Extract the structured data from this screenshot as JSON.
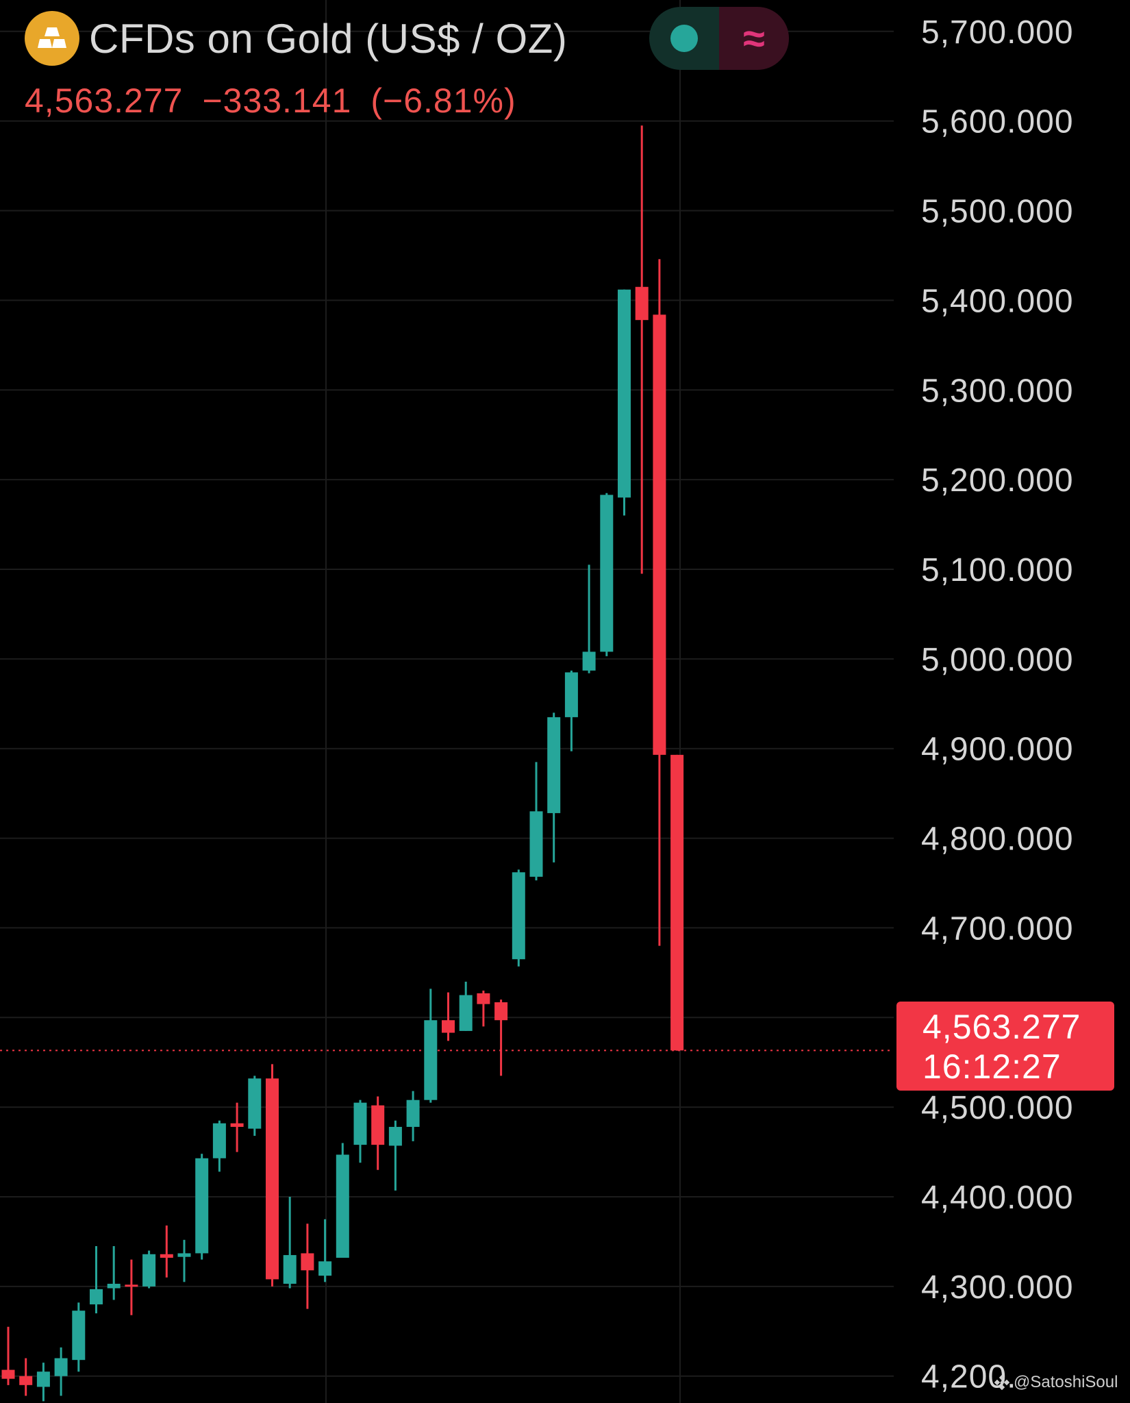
{
  "header": {
    "title": "CFDs on Gold (US$ / OZ)",
    "last_price": "4,563.277",
    "change": "−333.141",
    "change_pct": "(−6.81%)",
    "indicator_symbol": "≈"
  },
  "price_tag": {
    "price": "4,563.277",
    "countdown": "16:12:27"
  },
  "watermark": {
    "text": "@SatoshiSoul"
  },
  "colors": {
    "background": "#000000",
    "up": "#26a69a",
    "down": "#f23645",
    "grid": "#1c1c1c",
    "axis_text": "#d6d6d6",
    "gold_icon": "#e8a72a"
  },
  "chart_data": {
    "type": "candlestick",
    "title": "CFDs on Gold (US$ / OZ)",
    "ylim": [
      4170,
      5735
    ],
    "y_ticks": [
      {
        "value": 5700,
        "label": "5,700.000"
      },
      {
        "value": 5600,
        "label": "5,600.000"
      },
      {
        "value": 5500,
        "label": "5,500.000"
      },
      {
        "value": 5400,
        "label": "5,400.000"
      },
      {
        "value": 5300,
        "label": "5,300.000"
      },
      {
        "value": 5200,
        "label": "5,200.000"
      },
      {
        "value": 5100,
        "label": "5,100.000"
      },
      {
        "value": 5000,
        "label": "5,000.000"
      },
      {
        "value": 4900,
        "label": "4,900.000"
      },
      {
        "value": 4800,
        "label": "4,800.000"
      },
      {
        "value": 4700,
        "label": "4,700.000"
      },
      {
        "value": 4600,
        "label": "4,600.000"
      },
      {
        "value": 4500,
        "label": "4,500.000"
      },
      {
        "value": 4400,
        "label": "4,400.000"
      },
      {
        "value": 4300,
        "label": "4,300.000"
      },
      {
        "value": 4200,
        "label": "4,200."
      }
    ],
    "current_price": 4563.277,
    "grid": true,
    "candles": [
      {
        "o": 4207,
        "h": 4255,
        "l": 4190,
        "c": 4197
      },
      {
        "o": 4200,
        "h": 4220,
        "l": 4178,
        "c": 4190
      },
      {
        "o": 4188,
        "h": 4215,
        "l": 4172,
        "c": 4205
      },
      {
        "o": 4200,
        "h": 4232,
        "l": 4178,
        "c": 4220
      },
      {
        "o": 4218,
        "h": 4282,
        "l": 4205,
        "c": 4273
      },
      {
        "o": 4280,
        "h": 4345,
        "l": 4270,
        "c": 4297
      },
      {
        "o": 4298,
        "h": 4345,
        "l": 4285,
        "c": 4303
      },
      {
        "o": 4302,
        "h": 4330,
        "l": 4268,
        "c": 4300
      },
      {
        "o": 4300,
        "h": 4340,
        "l": 4298,
        "c": 4336
      },
      {
        "o": 4336,
        "h": 4368,
        "l": 4310,
        "c": 4332
      },
      {
        "o": 4333,
        "h": 4352,
        "l": 4305,
        "c": 4337
      },
      {
        "o": 4337,
        "h": 4448,
        "l": 4330,
        "c": 4443
      },
      {
        "o": 4443,
        "h": 4485,
        "l": 4428,
        "c": 4482
      },
      {
        "o": 4482,
        "h": 4505,
        "l": 4450,
        "c": 4478
      },
      {
        "o": 4476,
        "h": 4535,
        "l": 4468,
        "c": 4532
      },
      {
        "o": 4532,
        "h": 4548,
        "l": 4300,
        "c": 4308
      },
      {
        "o": 4303,
        "h": 4400,
        "l": 4298,
        "c": 4335
      },
      {
        "o": 4337,
        "h": 4370,
        "l": 4275,
        "c": 4318
      },
      {
        "o": 4312,
        "h": 4375,
        "l": 4305,
        "c": 4328
      },
      {
        "o": 4332,
        "h": 4460,
        "l": 4332,
        "c": 4447
      },
      {
        "o": 4458,
        "h": 4508,
        "l": 4438,
        "c": 4505
      },
      {
        "o": 4502,
        "h": 4512,
        "l": 4430,
        "c": 4458
      },
      {
        "o": 4457,
        "h": 4485,
        "l": 4407,
        "c": 4478
      },
      {
        "o": 4478,
        "h": 4518,
        "l": 4462,
        "c": 4508
      },
      {
        "o": 4508,
        "h": 4632,
        "l": 4505,
        "c": 4597
      },
      {
        "o": 4597,
        "h": 4628,
        "l": 4574,
        "c": 4583
      },
      {
        "o": 4585,
        "h": 4640,
        "l": 4585,
        "c": 4625
      },
      {
        "o": 4627,
        "h": 4630,
        "l": 4590,
        "c": 4615
      },
      {
        "o": 4617,
        "h": 4620,
        "l": 4535,
        "c": 4597
      },
      {
        "o": 4665,
        "h": 4765,
        "l": 4657,
        "c": 4762
      },
      {
        "o": 4757,
        "h": 4885,
        "l": 4753,
        "c": 4830
      },
      {
        "o": 4828,
        "h": 4940,
        "l": 4773,
        "c": 4935
      },
      {
        "o": 4935,
        "h": 4987,
        "l": 4897,
        "c": 4985
      },
      {
        "o": 4987,
        "h": 5105,
        "l": 4984,
        "c": 5008
      },
      {
        "o": 5008,
        "h": 5185,
        "l": 5003,
        "c": 5183
      },
      {
        "o": 5180,
        "h": 5412,
        "l": 5160,
        "c": 5412
      },
      {
        "o": 5415,
        "h": 5595,
        "l": 5095,
        "c": 5378
      },
      {
        "o": 5384,
        "h": 5446,
        "l": 4680,
        "c": 4893
      },
      {
        "o": 4893,
        "h": 4893,
        "l": 4563,
        "c": 4563.277
      }
    ]
  }
}
